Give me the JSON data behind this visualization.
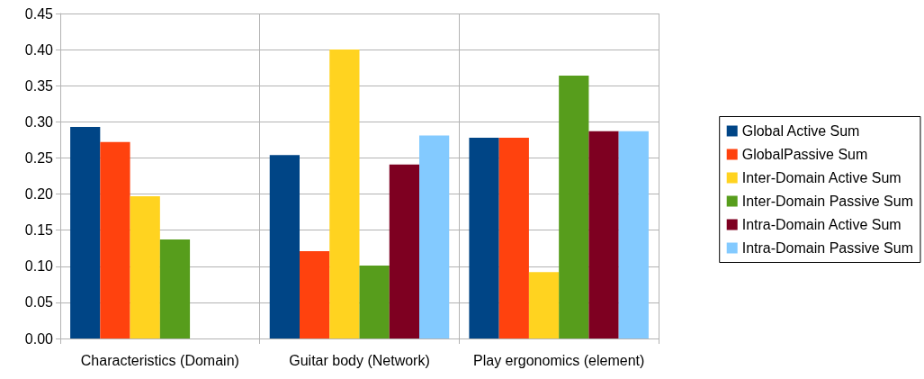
{
  "chart_data": {
    "type": "bar",
    "categories": [
      "Characteristics (Domain)",
      "Guitar body (Network)",
      "Play ergonomics (element)"
    ],
    "series": [
      {
        "name": "Global Active Sum",
        "color": "#004586",
        "values": [
          0.293,
          0.254,
          0.278
        ]
      },
      {
        "name": "GlobalPassive Sum",
        "color": "#ff420e",
        "values": [
          0.272,
          0.121,
          0.278
        ]
      },
      {
        "name": "Inter-Domain Active Sum",
        "color": "#ffd320",
        "values": [
          0.197,
          0.4,
          0.092
        ]
      },
      {
        "name": "Inter-Domain Passive Sum",
        "color": "#579d1c",
        "values": [
          0.137,
          0.101,
          0.364
        ]
      },
      {
        "name": "Intra-Domain Active Sum",
        "color": "#7e0021",
        "values": [
          0,
          0.241,
          0.287
        ]
      },
      {
        "name": "Intra-Domain Passive Sum",
        "color": "#83caff",
        "values": [
          0,
          0.281,
          0.287
        ]
      }
    ],
    "ylim": [
      0,
      0.45
    ],
    "yticks": [
      {
        "value": 0,
        "label": "0.00"
      },
      {
        "value": 0.05,
        "label": "0.05"
      },
      {
        "value": 0.1,
        "label": "0.10"
      },
      {
        "value": 0.15,
        "label": "0.15"
      },
      {
        "value": 0.2,
        "label": "0.20"
      },
      {
        "value": 0.25,
        "label": "0.25"
      },
      {
        "value": 0.3,
        "label": "0.30"
      },
      {
        "value": 0.35,
        "label": "0.35"
      },
      {
        "value": 0.4,
        "label": "0.40"
      },
      {
        "value": 0.45,
        "label": "0.45"
      }
    ],
    "grid": true,
    "legend": "right"
  }
}
